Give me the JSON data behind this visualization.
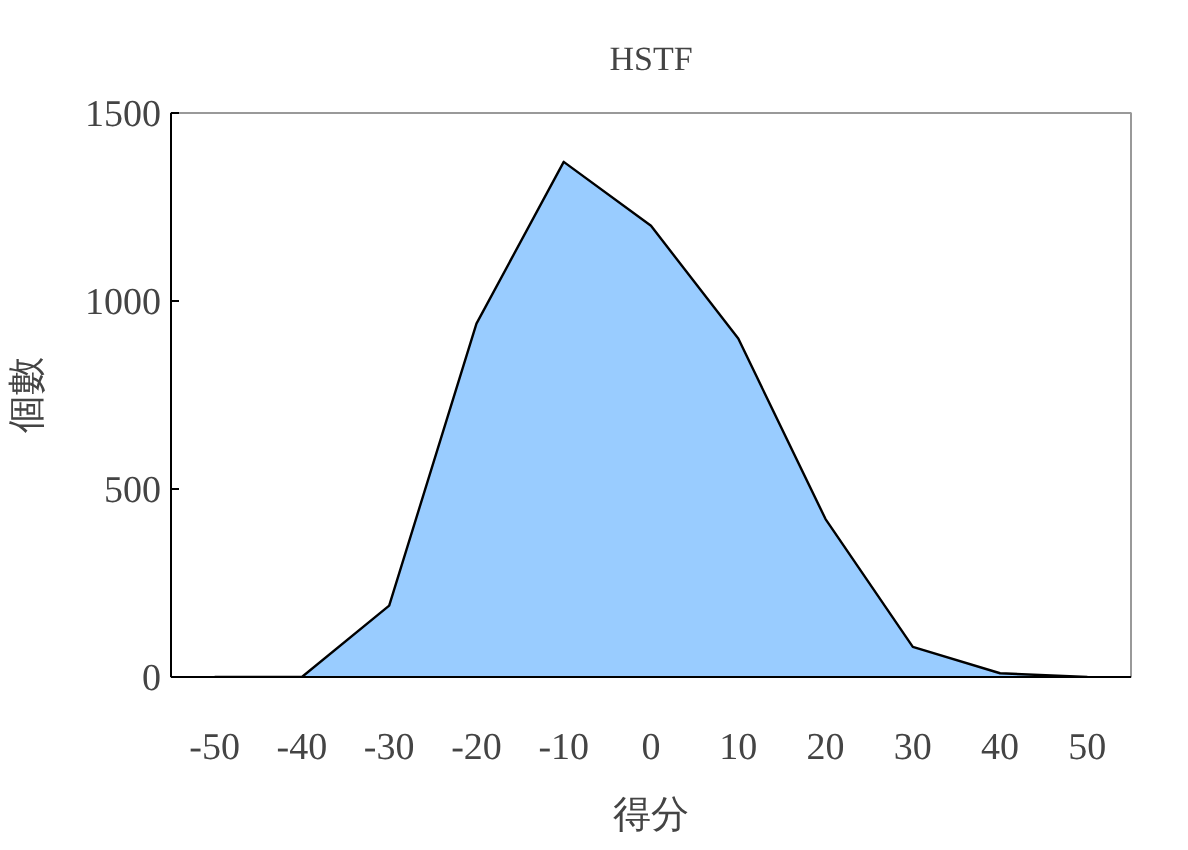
{
  "chart_data": {
    "type": "area",
    "title": "HSTF",
    "xlabel": "得分",
    "ylabel": "個數",
    "categories": [
      "-50",
      "-40",
      "-30",
      "-20",
      "-10",
      "0",
      "10",
      "20",
      "30",
      "40",
      "50"
    ],
    "series": [
      {
        "color": "#99ccff",
        "values": [
          0,
          0,
          190,
          940,
          1370,
          1200,
          900,
          420,
          80,
          10,
          0
        ]
      }
    ],
    "ylim": [
      0,
      1500
    ],
    "yticks": [
      0,
      500,
      1000,
      1500
    ],
    "grid": false
  }
}
